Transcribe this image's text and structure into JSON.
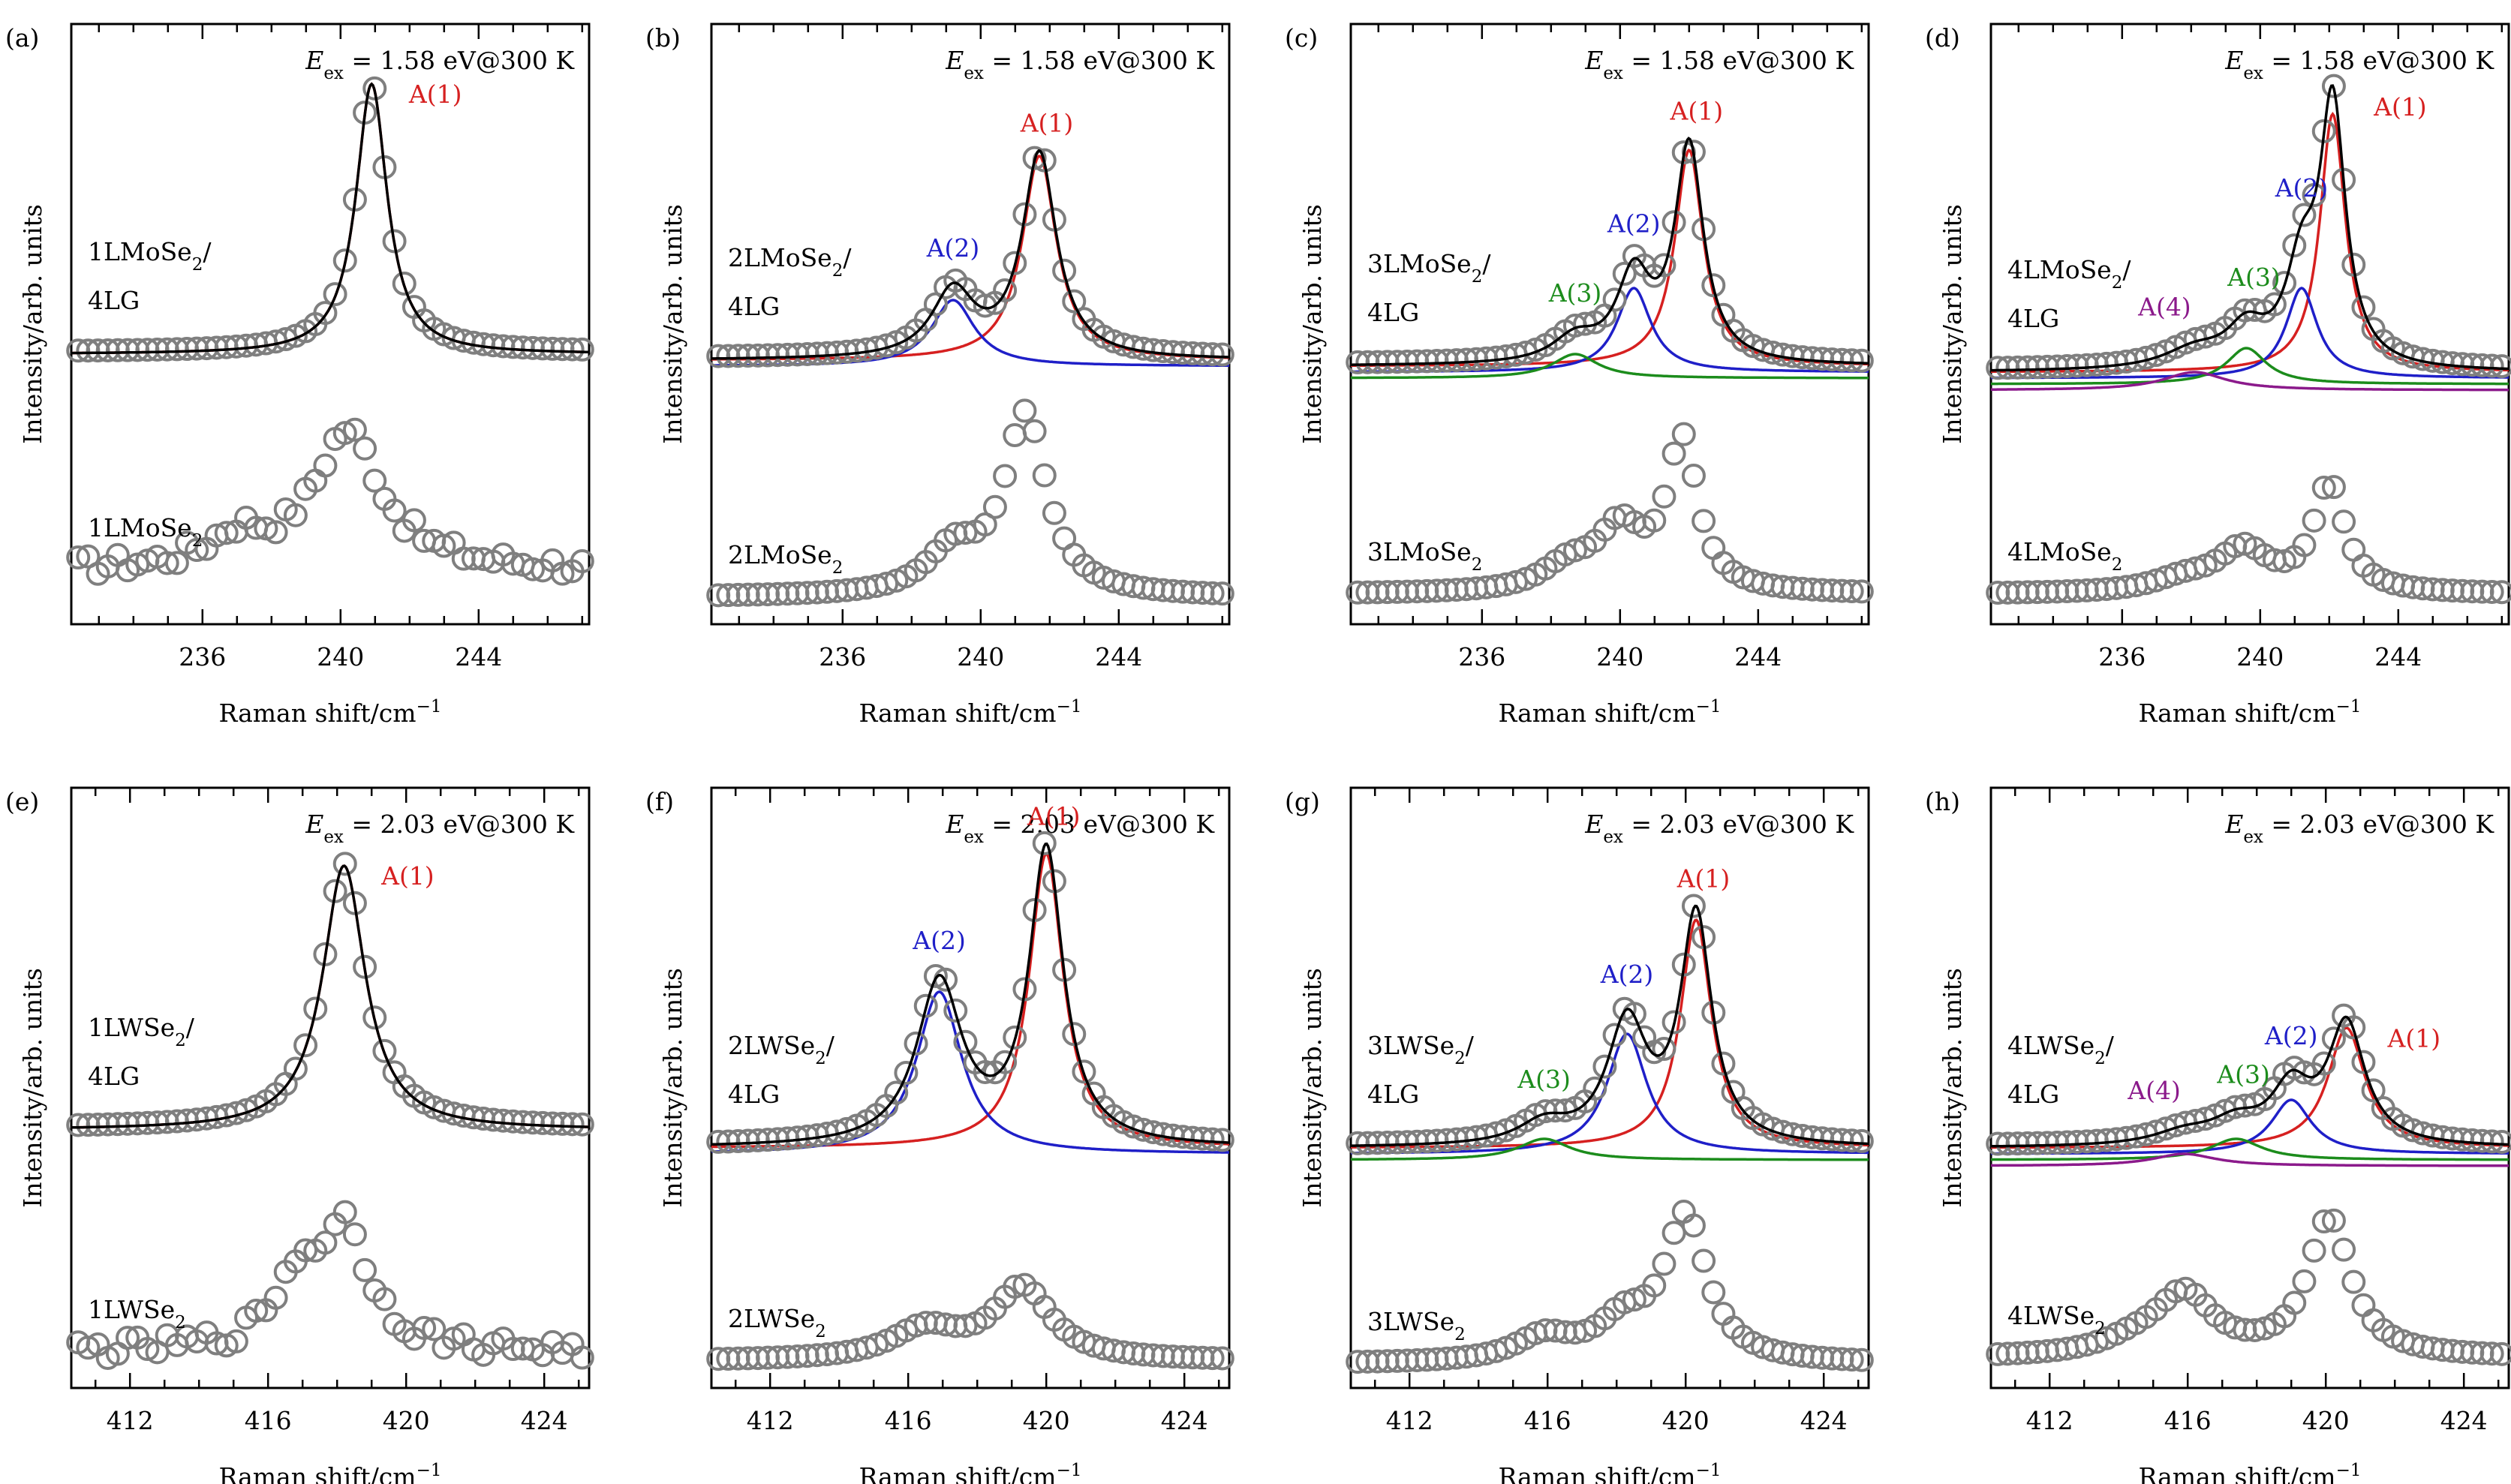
{
  "figure": {
    "ylabel": "Intensity/arb. units",
    "xlabel": "Raman shift/cm",
    "xlabel_sup": "−1"
  },
  "chart_data": [
    {
      "panel": "(a)",
      "type": "line",
      "excitation": {
        "E": "E",
        "sub": "ex",
        "rest": " = 1.58 eV@300 K"
      },
      "x_ticks": [
        236,
        240,
        244
      ],
      "xlim": [
        232.2,
        247.2
      ],
      "ylim": [
        0,
        1
      ],
      "hetero": {
        "label": {
          "line1": "1LMoSe",
          "sub": "2",
          "slash": "/",
          "line2": "4LG"
        },
        "baseline": 0.45,
        "peaks": [
          {
            "name": "A(1)",
            "color": "#d62020",
            "center": 240.9,
            "width": 0.55,
            "height": 0.45
          }
        ]
      },
      "mono": {
        "label": {
          "text": "1LMoSe",
          "sub": "2"
        },
        "baseline": 0.09,
        "noisy": true,
        "peaks": [
          {
            "center": 240.2,
            "width": 1.2,
            "height": 0.23
          },
          {
            "center": 237.0,
            "width": 1.0,
            "height": 0.05
          }
        ]
      }
    },
    {
      "panel": "(b)",
      "type": "line",
      "excitation": {
        "E": "E",
        "sub": "ex",
        "rest": " = 1.58 eV@300 K"
      },
      "x_ticks": [
        236,
        240,
        244
      ],
      "xlim": [
        232.2,
        247.2
      ],
      "ylim": [
        0,
        1
      ],
      "hetero": {
        "label": {
          "line1": "2LMoSe",
          "sub": "2",
          "slash": "/",
          "line2": "4LG"
        },
        "baseline": 0.44,
        "peaks": [
          {
            "name": "A(1)",
            "color": "#d62020",
            "center": 241.7,
            "width": 0.6,
            "height": 0.34
          },
          {
            "name": "A(2)",
            "color": "#1f1fc8",
            "center": 239.2,
            "width": 0.75,
            "height": 0.11
          }
        ]
      },
      "mono": {
        "label": {
          "text": "2LMoSe",
          "sub": "2"
        },
        "baseline": 0.045,
        "noisy": false,
        "peaks": [
          {
            "center": 241.3,
            "width": 0.75,
            "height": 0.3
          },
          {
            "center": 239.2,
            "width": 0.9,
            "height": 0.07
          }
        ]
      }
    },
    {
      "panel": "(c)",
      "type": "line",
      "excitation": {
        "E": "E",
        "sub": "ex",
        "rest": " = 1.58 eV@300 K"
      },
      "x_ticks": [
        236,
        240,
        244
      ],
      "xlim": [
        232.2,
        247.2
      ],
      "ylim": [
        0,
        1
      ],
      "hetero": {
        "label": {
          "line1": "3LMoSe",
          "sub": "2",
          "slash": "/",
          "line2": "4LG"
        },
        "baseline": 0.43,
        "peaks": [
          {
            "name": "A(1)",
            "color": "#d62020",
            "center": 242.0,
            "width": 0.5,
            "height": 0.36
          },
          {
            "name": "A(2)",
            "color": "#1f1fc8",
            "center": 240.4,
            "width": 0.6,
            "height": 0.14
          },
          {
            "name": "A(3)",
            "color": "#1c8c1c",
            "center": 238.7,
            "width": 0.8,
            "height": 0.04
          }
        ]
      },
      "mono": {
        "label": {
          "text": "3LMoSe",
          "sub": "2"
        },
        "baseline": 0.05,
        "noisy": false,
        "peaks": [
          {
            "center": 241.8,
            "width": 0.55,
            "height": 0.25
          },
          {
            "center": 240.0,
            "width": 0.8,
            "height": 0.1
          },
          {
            "center": 238.5,
            "width": 0.9,
            "height": 0.04
          }
        ]
      }
    },
    {
      "panel": "(d)",
      "type": "line",
      "excitation": {
        "E": "E",
        "sub": "ex",
        "rest": " = 1.58 eV@300 K"
      },
      "x_ticks": [
        236,
        240,
        244
      ],
      "xlim": [
        232.2,
        247.2
      ],
      "ylim": [
        0,
        1
      ],
      "hetero": {
        "label": {
          "line1": "4LMoSe",
          "sub": "2",
          "slash": "/",
          "line2": "4LG"
        },
        "baseline": 0.42,
        "peaks": [
          {
            "name": "A(1)",
            "color": "#d62020",
            "center": 242.1,
            "width": 0.45,
            "height": 0.43
          },
          {
            "name": "A(2)",
            "color": "#1f1fc8",
            "center": 241.2,
            "width": 0.55,
            "height": 0.15
          },
          {
            "name": "A(3)",
            "color": "#1c8c1c",
            "center": 239.6,
            "width": 0.7,
            "height": 0.06
          },
          {
            "name": "A(4)",
            "color": "#8b1a8b",
            "center": 238.1,
            "width": 1.1,
            "height": 0.03
          }
        ]
      },
      "mono": {
        "label": {
          "text": "4LMoSe",
          "sub": "2"
        },
        "baseline": 0.05,
        "noisy": false,
        "peaks": [
          {
            "center": 242.0,
            "width": 0.55,
            "height": 0.18
          },
          {
            "center": 239.5,
            "width": 0.9,
            "height": 0.07
          },
          {
            "center": 237.8,
            "width": 1.1,
            "height": 0.02
          }
        ]
      }
    },
    {
      "panel": "(e)",
      "type": "line",
      "excitation": {
        "E": "E",
        "sub": "ex",
        "rest": " = 2.03 eV@300 K"
      },
      "x_ticks": [
        412,
        416,
        420,
        424
      ],
      "xlim": [
        410.3,
        425.3
      ],
      "ylim": [
        0,
        1
      ],
      "hetero": {
        "label": {
          "line1": "1LWSe",
          "sub": "2",
          "slash": "/",
          "line2": "4LG"
        },
        "baseline": 0.43,
        "peaks": [
          {
            "name": "A(1)",
            "color": "#d62020",
            "center": 418.2,
            "width": 0.75,
            "height": 0.44
          }
        ]
      },
      "mono": {
        "label": {
          "text": "1LWSe",
          "sub": "2"
        },
        "baseline": 0.06,
        "noisy": true,
        "peaks": [
          {
            "center": 418.2,
            "width": 0.9,
            "height": 0.2
          },
          {
            "center": 416.8,
            "width": 0.8,
            "height": 0.1
          }
        ]
      }
    },
    {
      "panel": "(f)",
      "type": "line",
      "excitation": {
        "E": "E",
        "sub": "ex",
        "rest": " = 2.03 eV@300 K"
      },
      "x_ticks": [
        412,
        416,
        420,
        424
      ],
      "xlim": [
        410.3,
        425.3
      ],
      "ylim": [
        0,
        1
      ],
      "hetero": {
        "label": {
          "line1": "2LWSe",
          "sub": "2",
          "slash": "/",
          "line2": "4LG"
        },
        "baseline": 0.4,
        "peaks": [
          {
            "name": "A(1)",
            "color": "#d62020",
            "center": 420.0,
            "width": 0.6,
            "height": 0.49
          },
          {
            "name": "A(2)",
            "color": "#1f1fc8",
            "center": 416.9,
            "width": 0.8,
            "height": 0.27
          }
        ]
      },
      "mono": {
        "label": {
          "text": "2LWSe",
          "sub": "2"
        },
        "baseline": 0.045,
        "noisy": false,
        "peaks": [
          {
            "center": 419.3,
            "width": 1.0,
            "height": 0.12
          },
          {
            "center": 416.5,
            "width": 1.2,
            "height": 0.05
          }
        ]
      }
    },
    {
      "panel": "(g)",
      "type": "line",
      "excitation": {
        "E": "E",
        "sub": "ex",
        "rest": " = 2.03 eV@300 K"
      },
      "x_ticks": [
        412,
        416,
        420,
        424
      ],
      "xlim": [
        410.3,
        425.3
      ],
      "ylim": [
        0,
        1
      ],
      "hetero": {
        "label": {
          "line1": "3LWSe",
          "sub": "2",
          "slash": "/",
          "line2": "4LG"
        },
        "baseline": 0.4,
        "peaks": [
          {
            "name": "A(1)",
            "color": "#d62020",
            "center": 420.3,
            "width": 0.55,
            "height": 0.38
          },
          {
            "name": "A(2)",
            "color": "#1f1fc8",
            "center": 418.3,
            "width": 0.7,
            "height": 0.2
          },
          {
            "name": "A(3)",
            "color": "#1c8c1c",
            "center": 415.9,
            "width": 0.9,
            "height": 0.035
          }
        ]
      },
      "mono": {
        "label": {
          "text": "3LWSe",
          "sub": "2"
        },
        "baseline": 0.04,
        "noisy": false,
        "peaks": [
          {
            "center": 420.0,
            "width": 0.75,
            "height": 0.24
          },
          {
            "center": 418.2,
            "width": 0.9,
            "height": 0.06
          },
          {
            "center": 415.9,
            "width": 1.0,
            "height": 0.04
          }
        ]
      }
    },
    {
      "panel": "(h)",
      "type": "line",
      "excitation": {
        "E": "E",
        "sub": "ex",
        "rest": " = 2.03 eV@300 K"
      },
      "x_ticks": [
        412,
        416,
        420,
        424
      ],
      "xlim": [
        410.3,
        425.3
      ],
      "ylim": [
        0,
        1
      ],
      "hetero": {
        "label": {
          "line1": "4LWSe",
          "sub": "2",
          "slash": "/",
          "line2": "4LG"
        },
        "baseline": 0.4,
        "peaks": [
          {
            "name": "A(1)",
            "color": "#d62020",
            "center": 420.6,
            "width": 0.65,
            "height": 0.2
          },
          {
            "name": "A(2)",
            "color": "#1f1fc8",
            "center": 419.0,
            "width": 0.7,
            "height": 0.09
          },
          {
            "name": "A(3)",
            "color": "#1c8c1c",
            "center": 417.4,
            "width": 0.9,
            "height": 0.035
          },
          {
            "name": "A(4)",
            "color": "#8b1a8b",
            "center": 415.9,
            "width": 1.1,
            "height": 0.02
          }
        ]
      },
      "mono": {
        "label": {
          "text": "4LWSe",
          "sub": "2"
        },
        "baseline": 0.05,
        "noisy": false,
        "peaks": [
          {
            "center": 420.1,
            "width": 0.75,
            "height": 0.23
          },
          {
            "center": 415.9,
            "width": 1.0,
            "height": 0.1
          },
          {
            "center": 414.5,
            "width": 1.2,
            "height": 0.02
          }
        ]
      }
    }
  ]
}
